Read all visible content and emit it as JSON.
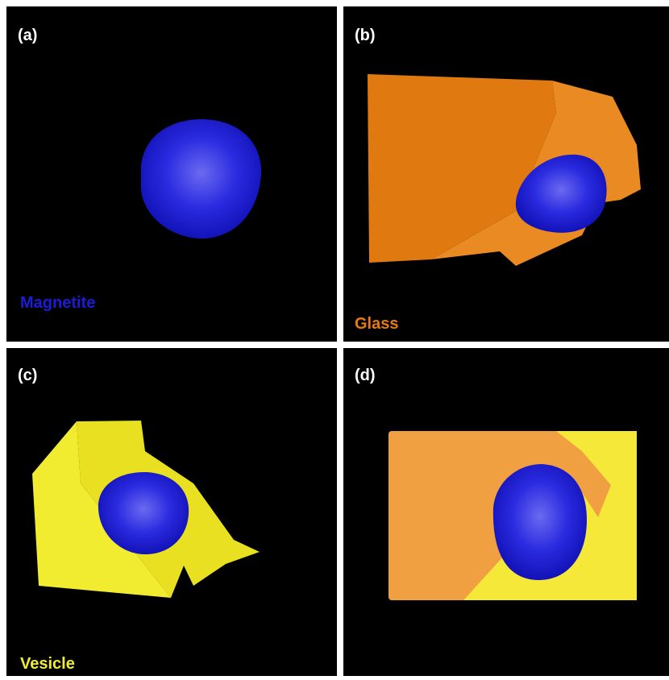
{
  "panels": [
    {
      "label": "(a)",
      "caption": "Magnetite"
    },
    {
      "label": "(b)",
      "caption": "Glass"
    },
    {
      "label": "(c)",
      "caption": "Vesicle"
    },
    {
      "label": "(d)"
    }
  ]
}
